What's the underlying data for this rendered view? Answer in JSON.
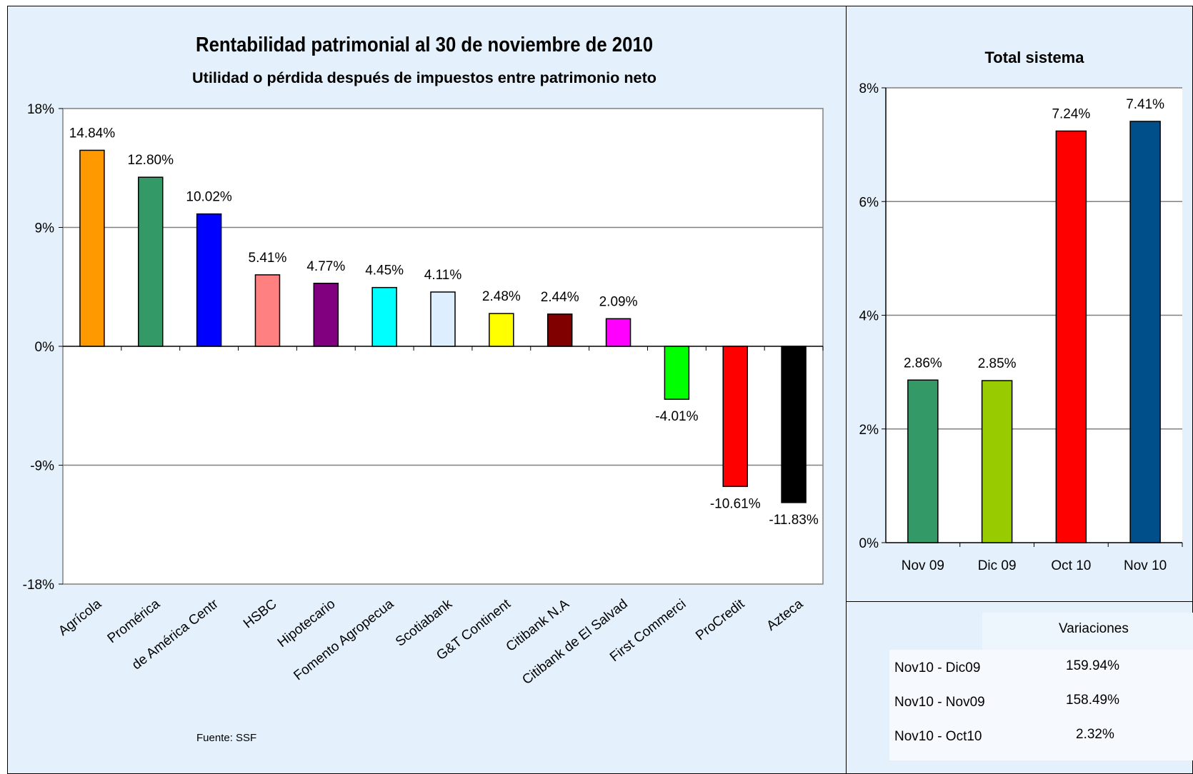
{
  "main_chart": {
    "title": "Rentabilidad patrimonial al 30 de noviembre de 2010",
    "subtitle": "Utilidad o pérdida después de impuestos entre patrimonio neto",
    "source": "Fuente: SSF"
  },
  "side_chart": {
    "title": "Total sistema"
  },
  "variations_table": {
    "header": "Variaciones",
    "rows": [
      {
        "label": "Nov10 - Dic09",
        "value": "159.94%"
      },
      {
        "label": "Nov10 - Nov09",
        "value": "158.49%"
      },
      {
        "label": "Nov10 - Oct10",
        "value": "2.32%"
      }
    ]
  },
  "chart_data": [
    {
      "type": "bar",
      "title": "Rentabilidad patrimonial al 30 de noviembre de 2010",
      "subtitle": "Utilidad o pérdida después de impuestos entre patrimonio neto",
      "categories": [
        "Agrícola",
        "Promérica",
        "de América Centr",
        "HSBC",
        "Hipotecario",
        "Fomento Agropecua",
        "Scotiabank",
        "G&T Continent",
        "Citibank N.A",
        "Citibank de El Salvad",
        "First Commerci",
        "ProCredit",
        "Azteca"
      ],
      "values": [
        14.84,
        12.8,
        10.02,
        5.41,
        4.77,
        4.45,
        4.11,
        2.48,
        2.44,
        2.09,
        -4.01,
        -10.61,
        -11.83
      ],
      "data_labels": [
        "14.84%",
        "12.80%",
        "10.02%",
        "5.41%",
        "4.77%",
        "4.45%",
        "4.11%",
        "2.48%",
        "2.44%",
        "2.09%",
        "-4.01%",
        "-10.61%",
        "-11.83%"
      ],
      "colors": [
        "#ff9900",
        "#339966",
        "#0000ff",
        "#ff8080",
        "#800080",
        "#00ffff",
        "#ddeeff",
        "#ffff00",
        "#800000",
        "#ff00ff",
        "#00ff00",
        "#ff0000",
        "#000000"
      ],
      "ylim": [
        -18,
        18
      ],
      "yticks": [
        "18%",
        "9%",
        "0%",
        "-9%",
        "-18%"
      ],
      "ytick_values": [
        18,
        9,
        0,
        -9,
        -18
      ],
      "grid": true,
      "xlabel": "",
      "ylabel": ""
    },
    {
      "type": "bar",
      "title": "Total sistema",
      "categories": [
        "Nov 09",
        "Dic 09",
        "Oct 10",
        "Nov 10"
      ],
      "values": [
        2.86,
        2.85,
        7.24,
        7.41
      ],
      "data_labels": [
        "2.86%",
        "2.85%",
        "7.24%",
        "7.41%"
      ],
      "colors": [
        "#339966",
        "#99cc00",
        "#ff0000",
        "#004f8b"
      ],
      "ylim": [
        0,
        8
      ],
      "yticks": [
        "8%",
        "6%",
        "4%",
        "2%",
        "0%"
      ],
      "ytick_values": [
        8,
        6,
        4,
        2,
        0
      ],
      "grid": true,
      "xlabel": "",
      "ylabel": ""
    }
  ]
}
